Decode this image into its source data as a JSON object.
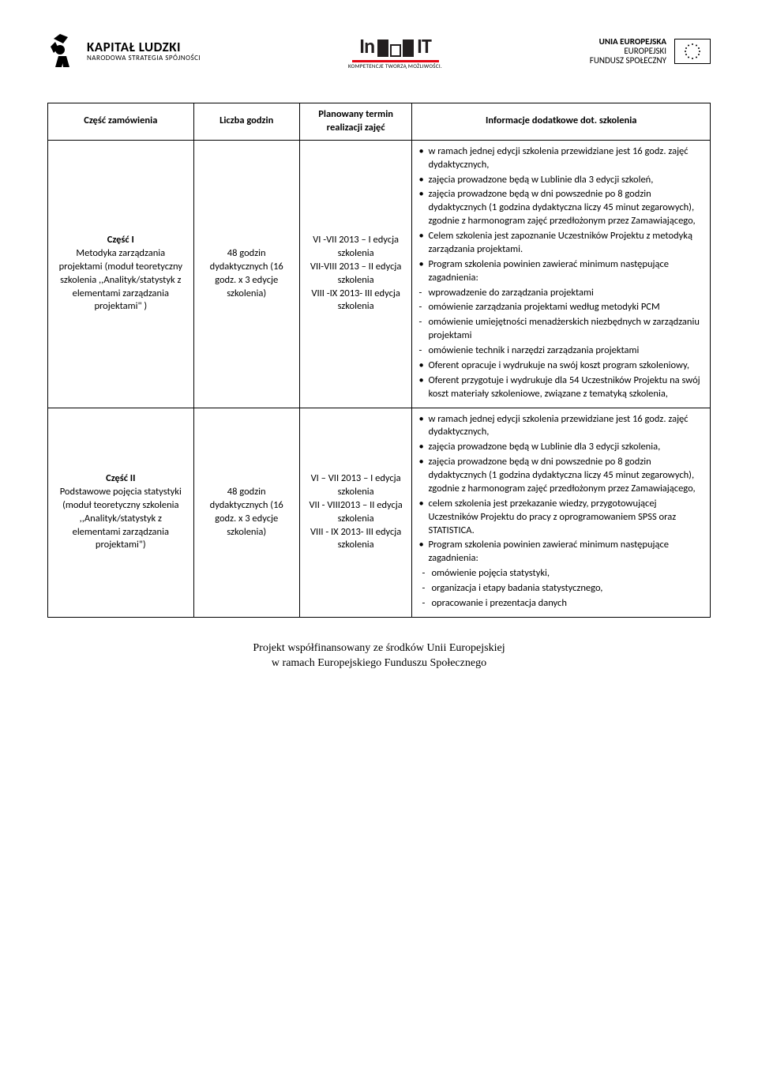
{
  "logos": {
    "left": {
      "title": "KAPITAŁ LUDZKI",
      "subtitle": "NARODOWA STRATEGIA SPÓJNOŚCI"
    },
    "center": {
      "brand": "InBIT",
      "subtitle": "KOMPETENCJE TWORZĄ MOŻLIWOŚCI."
    },
    "right": {
      "line1": "UNIA EUROPEJSKA",
      "line2": "EUROPEJSKI",
      "line3": "FUNDUSZ SPOŁECZNY"
    }
  },
  "table": {
    "headers": {
      "col1": "Część zamówienia",
      "col2": "Liczba godzin",
      "col3": "Planowany termin realizacji zajęć",
      "col4": "Informacje dodatkowe dot. szkolenia"
    },
    "col_widths": [
      "22%",
      "16%",
      "17%",
      "45%"
    ],
    "rows": [
      {
        "part": "Część I\nMetodyka zarządzania projektami (moduł teoretyczny szkolenia ,,Analityk/statystyk z elementami zarządzania projektami\" )",
        "hours": "48 godzin dydaktycznych (16 godz. x 3 edycje szkolenia)",
        "term": "VI -VII 2013 – I edycja szkolenia\nVII-VIII 2013 – II edycja szkolenia\nVIII -IX 2013- III edycja szkolenia",
        "info": [
          {
            "type": "bullet",
            "text": "w ramach jednej edycji szkolenia przewidziane jest 16 godz. zajęć dydaktycznych,"
          },
          {
            "type": "bullet",
            "text": "zajęcia prowadzone będą w Lublinie dla 3 edycji szkoleń,"
          },
          {
            "type": "bullet",
            "text": "zajęcia prowadzone będą w dni powszednie po 8 godzin dydaktycznych (1 godzina dydaktyczna liczy 45 minut zegarowych), zgodnie z harmonogram zajęć przedłożonym przez Zamawiającego,"
          },
          {
            "type": "bullet",
            "text": "Celem szkolenia jest zapoznanie Uczestników Projektu z metodyką zarządzania projektami."
          },
          {
            "type": "bullet",
            "text": "Program szkolenia powinien zawierać minimum następujące zagadnienia:"
          },
          {
            "type": "dash",
            "text": "wprowadzenie do zarządzania projektami"
          },
          {
            "type": "dash",
            "text": "omówienie zarządzania projektami  według metodyki PCM"
          },
          {
            "type": "dash",
            "text": "omówienie umiejętności menadżerskich niezbędnych w zarządzaniu projektami"
          },
          {
            "type": "dash",
            "text": "omówienie technik i narzędzi zarządzania projektami"
          },
          {
            "type": "bullet",
            "text": "Oferent opracuje i wydrukuje na swój koszt program szkoleniowy,"
          },
          {
            "type": "bullet",
            "text": "Oferent  przygotuje i  wydrukuje dla 54 Uczestników Projektu  na swój koszt materiały szkoleniowe,  związane z tematyką szkolenia,"
          }
        ]
      },
      {
        "part": "Część II\nPodstawowe pojęcia statystyki (moduł teoretyczny szkolenia ,,Analityk/statystyk z elementami zarządzania projektami\")",
        "hours": "48 godzin dydaktycznych (16 godz. x 3 edycje szkolenia)",
        "term": "VI – VII 2013 – I edycja szkolenia\nVII - VIII2013 – II edycja szkolenia\nVIII - IX 2013- III edycja szkolenia",
        "info": [
          {
            "type": "bullet",
            "text": "w ramach jednej edycji szkolenia przewidziane jest 16 godz. zajęć dydaktycznych,"
          },
          {
            "type": "bullet",
            "text": "zajęcia prowadzone będą w Lublinie dla 3 edycji szkolenia,"
          },
          {
            "type": "bullet",
            "text": "zajęcia prowadzone będą w dni powszednie po 8 godzin dydaktycznych (1 godzina dydaktyczna liczy 45 minut zegarowych), zgodnie z harmonogram zajęć przedłożonym przez Zamawiającego,"
          },
          {
            "type": "bullet",
            "text": "celem szkolenia jest  przekazanie wiedzy, przygotowującej Uczestników Projektu do pracy z oprogramowaniem SPSS oraz STATISTICA."
          },
          {
            "type": "bullet",
            "text": "Program szkolenia powinien zawierać minimum następujące zagadnienia:"
          },
          {
            "type": "dash-indent",
            "text": "omówienie pojęcia statystyki,"
          },
          {
            "type": "dash-indent",
            "text": "organizacja i etapy badania statystycznego,"
          },
          {
            "type": "dash-indent",
            "text": "opracowanie i prezentacja danych"
          }
        ]
      }
    ]
  },
  "footer": {
    "line1": "Projekt współfinansowany  ze środków Unii Europejskiej",
    "line2": "w ramach Europejskiego Funduszu Społecznego"
  }
}
